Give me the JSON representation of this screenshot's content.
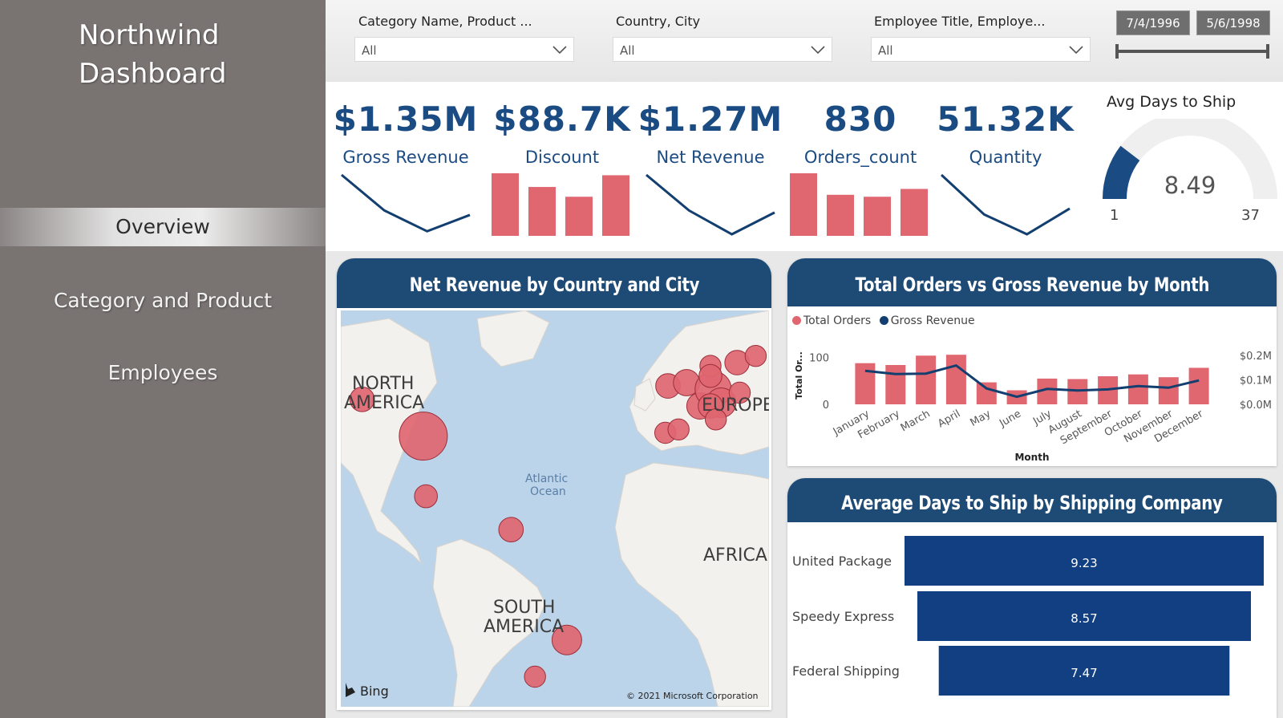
{
  "sidebar": {
    "app_title_line1": "Northwind",
    "app_title_line2": "Dashboard",
    "nav": [
      "Overview",
      "Category and Product",
      "Employees"
    ],
    "active_index": 0
  },
  "filters": {
    "category": {
      "title": "Category Name, Product ...",
      "value": "All"
    },
    "country": {
      "title": "Country, City",
      "value": "All"
    },
    "employee": {
      "title": "Employee Title, Employe...",
      "value": "All"
    },
    "date_start": "7/4/1996",
    "date_end": "5/6/1998",
    "date_slider": {
      "start": 0.0,
      "end": 1.0
    }
  },
  "kpis": [
    {
      "value": "$1.35M",
      "label": "Gross Revenue",
      "spark": "line",
      "trend": [
        4,
        1.6,
        0.2,
        1.3
      ]
    },
    {
      "value": "$88.7K",
      "label": "Discount",
      "spark": "bar",
      "trend": [
        3.2,
        2.5,
        2.0,
        3.1
      ]
    },
    {
      "value": "$1.27M",
      "label": "Net Revenue",
      "spark": "line",
      "trend": [
        3.0,
        1.2,
        0.0,
        1.1
      ]
    },
    {
      "value": "830",
      "label": "Orders_count",
      "spark": "bar",
      "trend": [
        3.2,
        2.1,
        2.0,
        2.4
      ]
    },
    {
      "value": "51.32K",
      "label": "Quantity",
      "spark": "line",
      "trend": [
        3.0,
        1.0,
        0.0,
        1.3
      ]
    }
  ],
  "gauge": {
    "title": "Avg Days to Ship",
    "value": 8.49,
    "value_label": "8.49",
    "min": 1,
    "max": 37,
    "min_label": "1",
    "max_label": "37"
  },
  "map_panel": {
    "title": "Net Revenue by Country and City",
    "labels": {
      "north_america_1": "NORTH",
      "north_america_2": "AMERICA",
      "europe": "EUROPE",
      "south_america_1": "SOUTH",
      "south_america_2": "AMERICA",
      "africa": "AFRICA",
      "ocean_1": "Atlantic",
      "ocean_2": "Ocean"
    },
    "bing": "Bing",
    "copyright": "© 2021 Microsoft Corporation"
  },
  "orders_panel": {
    "title": "Total Orders vs Gross Revenue by Month",
    "legend_orders": "Total Orders",
    "legend_revenue": "Gross Revenue",
    "y_axis_title": "Total Or...",
    "x_axis_title": "Month"
  },
  "ship_panel": {
    "title": "Average Days to Ship by Shipping Company"
  },
  "chart_data": [
    {
      "type": "bar",
      "title": "Total Orders vs Gross Revenue by Month",
      "categories": [
        "January",
        "February",
        "March",
        "April",
        "May",
        "June",
        "July",
        "August",
        "September",
        "October",
        "November",
        "December"
      ],
      "series": [
        {
          "name": "Total Orders",
          "type": "bar",
          "axis": "left",
          "values": [
            88,
            84,
            104,
            106,
            47,
            30,
            55,
            54,
            60,
            64,
            58,
            78
          ]
        },
        {
          "name": "Gross Revenue",
          "type": "line",
          "axis": "right",
          "values": [
            0.137,
            0.124,
            0.126,
            0.159,
            0.065,
            0.031,
            0.063,
            0.057,
            0.061,
            0.075,
            0.068,
            0.098
          ]
        }
      ],
      "xlabel": "Month",
      "ylabel": "Total Or...",
      "ylim": [
        0,
        120
      ],
      "y_ticks": [
        "0",
        "100"
      ],
      "y2lim": [
        0,
        0.23
      ],
      "y2_ticks": [
        "$0.0M",
        "$0.1M",
        "$0.2M"
      ],
      "colors": {
        "bar": "#e06670",
        "line": "#123f6f"
      }
    },
    {
      "type": "bar",
      "orientation": "horizontal",
      "title": "Average Days to Ship by Shipping Company",
      "categories": [
        "United Package",
        "Speedy Express",
        "Federal Shipping"
      ],
      "values": [
        9.23,
        8.57,
        7.47
      ],
      "value_labels": [
        "9.23",
        "8.57",
        "7.47"
      ],
      "colors": {
        "bar": "#123f82"
      }
    },
    {
      "type": "scatter",
      "title": "Net Revenue by Country and City",
      "points": [
        {
          "lon": -123,
          "lat": 49,
          "size": 0.3
        },
        {
          "lon": -100,
          "lat": 38,
          "size": 1.0
        },
        {
          "lon": -99,
          "lat": 20,
          "size": 0.25
        },
        {
          "lon": -67,
          "lat": 10,
          "size": 0.3
        },
        {
          "lon": -46,
          "lat": -23,
          "size": 0.45
        },
        {
          "lon": -58,
          "lat": -34,
          "size": 0.2
        },
        {
          "lon": -9,
          "lat": 39,
          "size": 0.2
        },
        {
          "lon": -4,
          "lat": 40,
          "size": 0.2
        },
        {
          "lon": -8,
          "lat": 53,
          "size": 0.3
        },
        {
          "lon": -1,
          "lat": 54,
          "size": 0.35
        },
        {
          "lon": 4,
          "lat": 47,
          "size": 0.35
        },
        {
          "lon": 9,
          "lat": 52,
          "size": 0.65
        },
        {
          "lon": 12,
          "lat": 48,
          "size": 0.45
        },
        {
          "lon": 8,
          "lat": 47,
          "size": 0.3
        },
        {
          "lon": 10,
          "lat": 43,
          "size": 0.2
        },
        {
          "lon": 19,
          "lat": 51,
          "size": 0.2
        },
        {
          "lon": 18,
          "lat": 60,
          "size": 0.3
        },
        {
          "lon": 8,
          "lat": 59,
          "size": 0.2
        },
        {
          "lon": 25,
          "lat": 62,
          "size": 0.2
        },
        {
          "lon": 8,
          "lat": 56,
          "size": 0.25
        }
      ],
      "colors": {
        "bubble": "#e06670"
      }
    }
  ],
  "colors": {
    "accent": "#1b4b83",
    "header": "#1e4a76",
    "sidebar": "#797372",
    "bar_red": "#e06670"
  }
}
